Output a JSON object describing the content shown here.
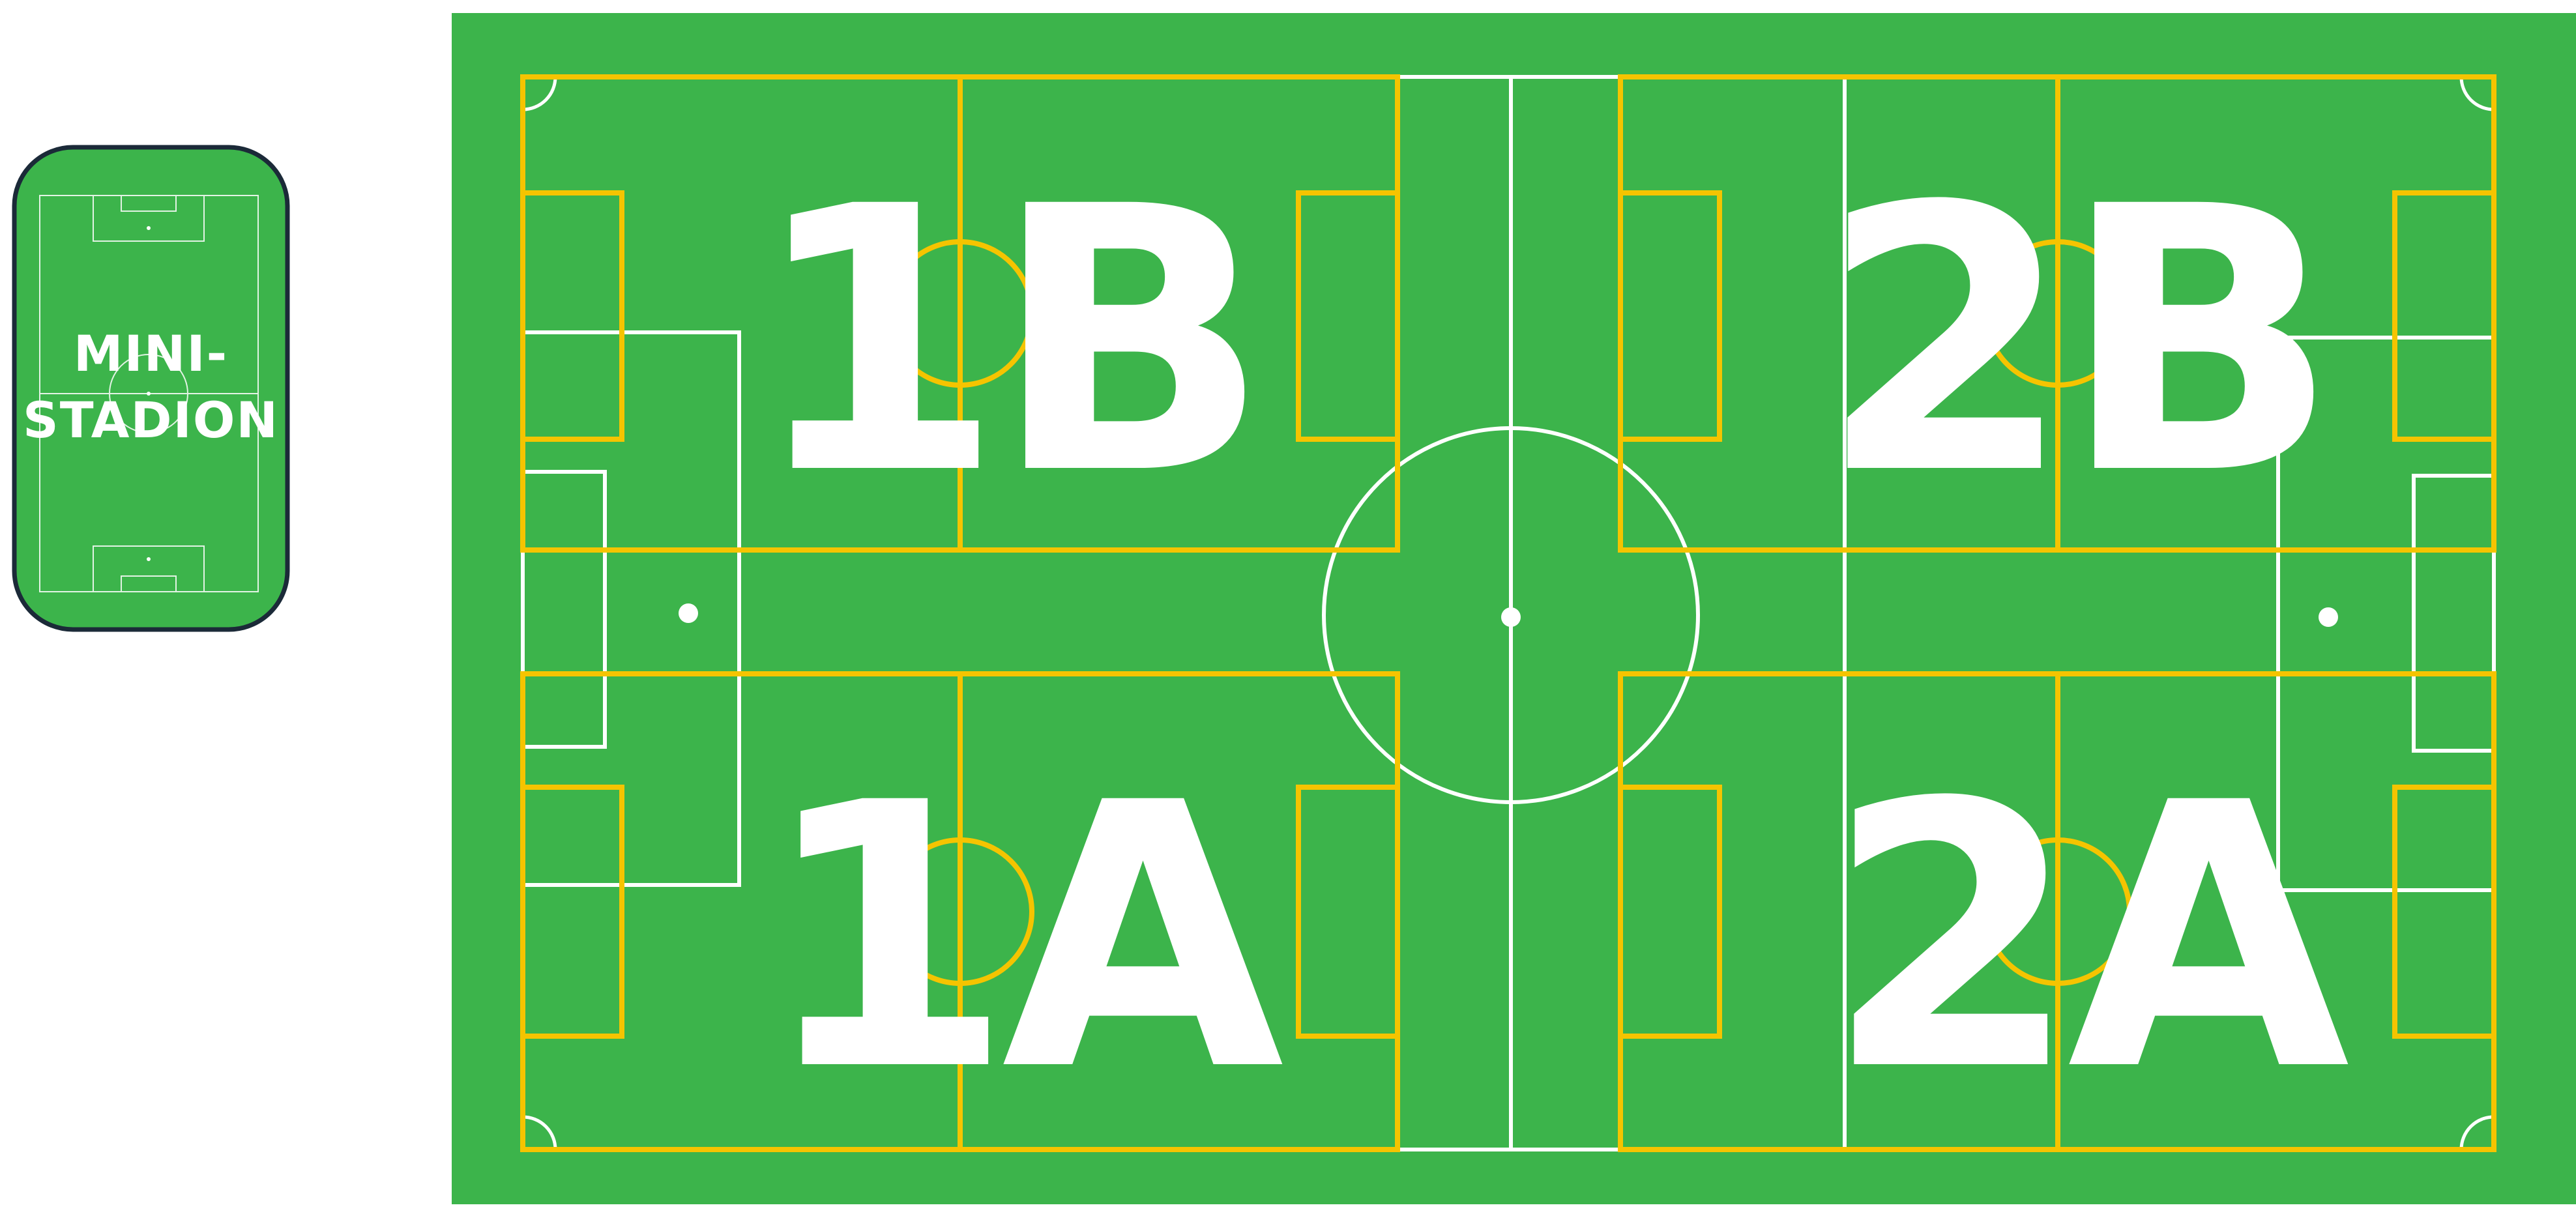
{
  "mini_stadium": {
    "label_line1": "MINI-",
    "label_line2": "STADION"
  },
  "fields": [
    {
      "id": "1B",
      "label": "1B"
    },
    {
      "id": "2B",
      "label": "2B"
    },
    {
      "id": "1A",
      "label": "1A"
    },
    {
      "id": "2A",
      "label": "2A"
    }
  ],
  "colors": {
    "grass": "#3cb44b",
    "line_white": "#ffffff",
    "subfield_yellow": "#f5c400",
    "mini_border": "#1b2a38"
  }
}
